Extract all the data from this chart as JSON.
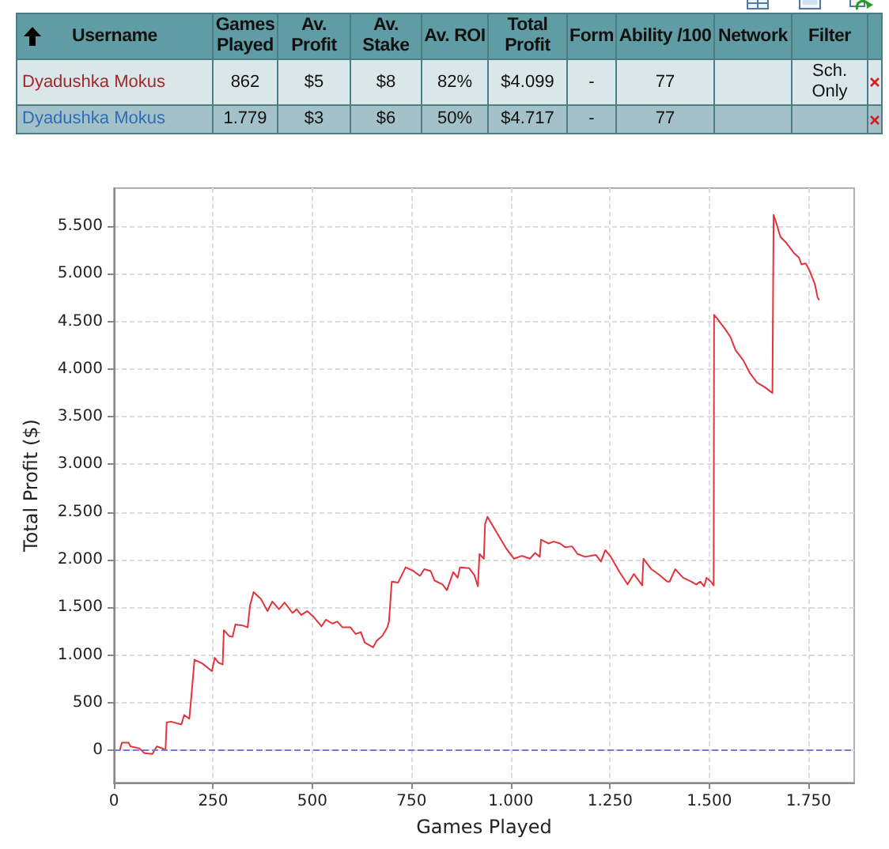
{
  "chart_data": [
    {
      "type": "other",
      "categories": [
        "Username",
        "Games Played",
        "Av. Profit",
        "Av. Stake",
        "Av. ROI",
        "Total Profit",
        "Form",
        "Ability /100",
        "Network",
        "Filter"
      ],
      "cell_labels": [
        [
          "Dyadushka Mokus",
          "862",
          "$5",
          "$8",
          "82%",
          "$4.099",
          "-",
          "77",
          null,
          "Sch. Only"
        ],
        [
          "Dyadushka Mokus",
          "1.779",
          "$3",
          "$6",
          "50%",
          "$4.717",
          "-",
          "77",
          null,
          null
        ]
      ]
    },
    {
      "type": "line",
      "xlabel": "Games Played",
      "ylabel": "Total Profit ($)",
      "x": [
        0,
        15,
        20,
        37,
        42,
        64,
        77,
        97,
        108,
        122,
        130,
        133,
        144,
        170,
        177,
        190,
        197,
        203,
        223,
        247,
        254,
        263,
        274,
        277,
        290,
        299,
        306,
        324,
        337,
        343,
        352,
        370,
        387,
        399,
        416,
        430,
        450,
        460,
        472,
        487,
        503,
        523,
        534,
        550,
        563,
        576,
        596,
        609,
        622,
        632,
        653,
        662,
        676,
        689,
        693,
        700,
        716,
        735,
        755,
        771,
        782,
        798,
        808,
        828,
        839,
        855,
        866,
        872,
        895,
        908,
        917,
        921,
        932,
        935,
        941,
        961,
        988,
        1008,
        1028,
        1048,
        1061,
        1073,
        1076,
        1095,
        1108,
        1124,
        1137,
        1154,
        1168,
        1187,
        1214,
        1227,
        1238,
        1252,
        1274,
        1294,
        1310,
        1331,
        1334,
        1354,
        1374,
        1394,
        1400,
        1414,
        1434,
        1454,
        1467,
        1477,
        1487,
        1493,
        1504,
        1511,
        1512,
        1520,
        1540,
        1553,
        1566,
        1586,
        1602,
        1620,
        1640,
        1659,
        1662,
        1669,
        1679,
        1693,
        1713,
        1726,
        1732,
        1743,
        1753,
        1766,
        1773,
        1776
      ],
      "series": [
        {
          "color": "#e2343c",
          "values": [
            0,
            0,
            80,
            80,
            40,
            20,
            -30,
            -40,
            40,
            20,
            0,
            290,
            300,
            270,
            370,
            330,
            650,
            950,
            910,
            830,
            970,
            920,
            900,
            1260,
            1200,
            1190,
            1320,
            1310,
            1290,
            1520,
            1660,
            1590,
            1460,
            1560,
            1480,
            1550,
            1440,
            1480,
            1420,
            1460,
            1400,
            1300,
            1370,
            1330,
            1350,
            1290,
            1290,
            1220,
            1240,
            1130,
            1080,
            1150,
            1200,
            1290,
            1350,
            1770,
            1760,
            1920,
            1880,
            1830,
            1900,
            1880,
            1780,
            1740,
            1680,
            1870,
            1810,
            1920,
            1910,
            1840,
            1720,
            2060,
            2010,
            2370,
            2450,
            2310,
            2120,
            2010,
            2040,
            2010,
            2070,
            2030,
            2210,
            2170,
            2190,
            2170,
            2130,
            2140,
            2060,
            2030,
            2050,
            1980,
            2100,
            2030,
            1870,
            1740,
            1850,
            1730,
            2010,
            1900,
            1840,
            1770,
            1770,
            1900,
            1810,
            1770,
            1740,
            1770,
            1720,
            1810,
            1770,
            1730,
            4570,
            4530,
            4420,
            4340,
            4200,
            4090,
            3960,
            3860,
            3810,
            3750,
            5620,
            5530,
            5390,
            5330,
            5220,
            5170,
            5100,
            5110,
            5030,
            4890,
            4750,
            4730
          ]
        }
      ],
      "xlim": [
        0,
        1865
      ],
      "xticks": [
        0,
        250,
        500,
        750,
        {
          "value": 1000,
          "label": "1.000"
        },
        {
          "value": 1250,
          "label": "1.250"
        },
        {
          "value": 1500,
          "label": "1.500"
        },
        {
          "value": 1750,
          "label": "1.750"
        }
      ],
      "ylim": [
        -340,
        5900
      ],
      "yticks": [
        0,
        500,
        {
          "value": 1000,
          "label": "1.000"
        },
        {
          "value": 1500,
          "label": "1.500"
        },
        {
          "value": 2000,
          "label": "2.000"
        },
        {
          "value": 2500,
          "label": "2.500"
        },
        {
          "value": 3000,
          "label": "3.000"
        },
        {
          "value": 3500,
          "label": "3.500"
        },
        {
          "value": 4000,
          "label": "4.000"
        },
        {
          "value": 4500,
          "label": "4.500"
        },
        {
          "value": 5000,
          "label": "5.000"
        },
        {
          "value": 5500,
          "label": "5.500"
        }
      ],
      "ref_lines": [
        {
          "axis": "y",
          "value": 0,
          "color": "#7b7bd6",
          "line_style": "dashed"
        }
      ],
      "grid": true
    }
  ]
}
